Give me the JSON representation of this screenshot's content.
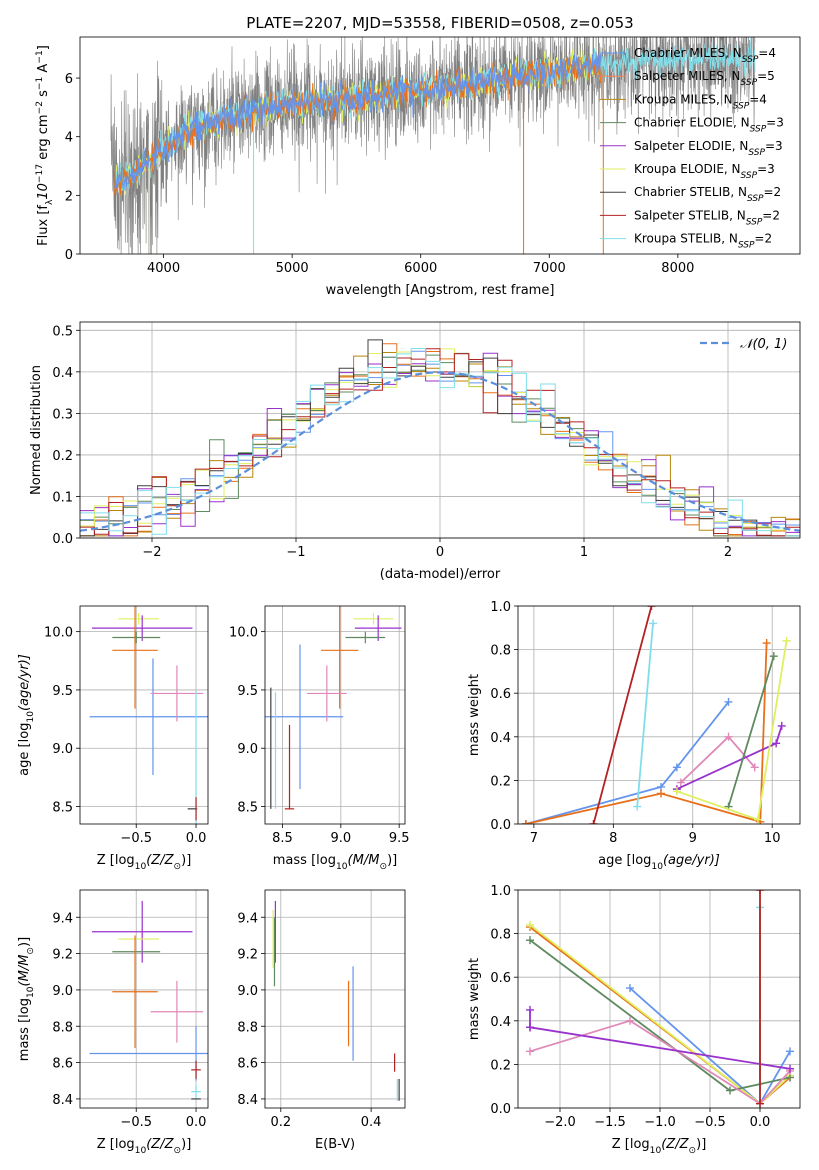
{
  "figure_title": "PLATE=2207, MJD=53558, FIBERID=0508, z=0.053",
  "colors": {
    "Chabrier MILES": "#6495ed",
    "Salpeter MILES": "#ff7f50",
    "Kroupa MILES": "#b8860b",
    "Chabrier ELODIE": "#5f8a5f",
    "Salpeter ELODIE": "#9932cc",
    "Kroupa ELODIE": "#dfef5f",
    "Chabrier STELIB": "#404040",
    "Salpeter STELIB": "#b22222",
    "Kroupa STELIB": "#80deea",
    "Pink": "#e088b8",
    "Orange": "#e8701a",
    "Gray": "#808080"
  },
  "chart_data": [
    {
      "id": "spectrum",
      "type": "line",
      "xlabel": "wavelength [Angstrom, rest frame]",
      "ylabel_parts": [
        "Flux [f",
        "λ",
        "10",
        "−17",
        " erg cm",
        "−2",
        " s",
        "−1",
        " A",
        "−1",
        "]"
      ],
      "xlim": [
        3350,
        8950
      ],
      "ylim": [
        0,
        7.4
      ],
      "xticks": [
        4000,
        5000,
        6000,
        7000,
        8000
      ],
      "yticks": [
        0,
        2,
        4,
        6
      ],
      "grid": false,
      "legend_placement": "top-right",
      "legend": [
        {
          "label": "Chabrier MILES, N",
          "sub": "SSP",
          "suffix": "=4",
          "color": "#6495ed"
        },
        {
          "label": "Salpeter MILES, N",
          "sub": "SSP",
          "suffix": "=5",
          "color": "#ff7f50"
        },
        {
          "label": "Kroupa MILES, N",
          "sub": "SSP",
          "suffix": "=4",
          "color": "#b8860b"
        },
        {
          "label": "Chabrier ELODIE, N",
          "sub": "SSP",
          "suffix": "=3",
          "color": "#5f8a5f"
        },
        {
          "label": "Salpeter ELODIE, N",
          "sub": "SSP",
          "suffix": "=3",
          "color": "#9932cc"
        },
        {
          "label": "Kroupa ELODIE, N",
          "sub": "SSP",
          "suffix": "=3",
          "color": "#dfef5f"
        },
        {
          "label": "Chabrier STELIB, N",
          "sub": "SSP",
          "suffix": "=2",
          "color": "#404040"
        },
        {
          "label": "Salpeter STELIB, N",
          "sub": "SSP",
          "suffix": "=2",
          "color": "#b22222"
        },
        {
          "label": "Kroupa STELIB, N",
          "sub": "SSP",
          "suffix": "=2",
          "color": "#80deea"
        }
      ],
      "continuum": {
        "x": [
          3600,
          3800,
          4000,
          4200,
          4500,
          4800,
          5000,
          5300,
          5600,
          5900,
          6200,
          6500,
          6800,
          7000,
          7200,
          7400,
          7600,
          7800,
          8000,
          8200,
          8400,
          8600
        ],
        "y": [
          2.3,
          2.8,
          3.6,
          4.2,
          4.6,
          4.9,
          5.1,
          5.2,
          5.35,
          5.55,
          5.65,
          5.85,
          6.1,
          6.2,
          6.3,
          6.4,
          6.5,
          6.55,
          6.6,
          6.65,
          6.65,
          6.6
        ]
      },
      "data_noise": 0.9,
      "model_noise": 0.25
    },
    {
      "id": "residuals",
      "type": "line",
      "xlabel": "(data-model)/error",
      "ylabel": "Normed distribution",
      "xlim": [
        -2.5,
        2.5
      ],
      "ylim": [
        0,
        0.52
      ],
      "xticks": [
        -2,
        -1,
        0,
        1,
        2
      ],
      "xticklabels": [
        "−2",
        "−1",
        "0",
        "1",
        "2"
      ],
      "yticks": [
        0.0,
        0.1,
        0.2,
        0.3,
        0.4,
        0.5
      ],
      "yticklabels": [
        "0.0",
        "0.1",
        "0.2",
        "0.3",
        "0.4",
        "0.5"
      ],
      "grid": true,
      "legend_placement": "top-right",
      "gaussian_label": "𝒩(0, 1)",
      "gaussian_color": "#5b8fdb",
      "bin_width": 0.1,
      "hist_noise": 0.03
    },
    {
      "id": "age-vs-Z",
      "type": "scatter",
      "xlabel_parts": [
        "Z [log",
        "10",
        "(Z/Z",
        "⊙",
        ")]"
      ],
      "ylabel_parts": [
        "age  [log",
        "10",
        "(age/yr)]"
      ],
      "xlim": [
        -0.97,
        0.1
      ],
      "ylim": [
        8.35,
        10.22
      ],
      "xticks": [
        -0.5,
        0.0
      ],
      "xticklabels": [
        "−0.5",
        "0.0"
      ],
      "yticks": [
        8.5,
        9.0,
        9.5,
        10.0
      ],
      "yticklabels": [
        "8.5",
        "9.0",
        "9.5",
        "10.0"
      ],
      "grid": true,
      "points": [
        {
          "x": -0.48,
          "y": 10.11,
          "xerr": 0.17,
          "yerr": 0.05,
          "color": "#dfef5f"
        },
        {
          "x": -0.45,
          "y": 10.03,
          "xerr": 0.42,
          "yerr": 0.11,
          "color": "#9932cc"
        },
        {
          "x": -0.5,
          "y": 9.95,
          "xerr": 0.2,
          "yerr": 0.05,
          "color": "#5f8a5f"
        },
        {
          "x": -0.51,
          "y": 9.84,
          "xerr": 0.19,
          "yerr": 0.5,
          "color": "#e8701a"
        },
        {
          "x": -0.36,
          "y": 9.27,
          "xerr": 0.53,
          "yerr": 0.5,
          "color": "#6495ed"
        },
        {
          "x": -0.16,
          "y": 9.47,
          "xerr": 0.22,
          "yerr": 0.24,
          "color": "#e088b8"
        },
        {
          "x": -0.03,
          "y": 8.48,
          "xerr": 0.04,
          "yerr": 0.0,
          "color": "#404040"
        },
        {
          "x": 0.0,
          "y": 8.48,
          "xerr": 0.0,
          "yerr": 1.01,
          "color": "#80deea"
        },
        {
          "x": 0.0,
          "y": 8.48,
          "xerr": 0.0,
          "yerr": 0.1,
          "color": "#b22222"
        }
      ]
    },
    {
      "id": "age-vs-mass",
      "type": "scatter",
      "xlabel_parts": [
        "mass [log",
        "10",
        "(M/M",
        "⊙",
        ")]"
      ],
      "xlim": [
        8.35,
        9.55
      ],
      "ylim": [
        8.35,
        10.22
      ],
      "xticks": [
        8.5,
        9.0,
        9.5
      ],
      "xticklabels": [
        "8.5",
        "9.0",
        "9.5"
      ],
      "yticks": [
        8.5,
        9.0,
        9.5,
        10.0
      ],
      "yticklabels": [
        "8.5",
        "9.0",
        "9.5",
        "10.0"
      ],
      "grid": true,
      "points": [
        {
          "x": 9.28,
          "y": 10.11,
          "xerr": 0.17,
          "yerr": 0.05,
          "color": "#dfef5f"
        },
        {
          "x": 9.32,
          "y": 10.03,
          "xerr": 0.2,
          "yerr": 0.11,
          "color": "#9932cc"
        },
        {
          "x": 9.21,
          "y": 9.95,
          "xerr": 0.17,
          "yerr": 0.05,
          "color": "#5f8a5f"
        },
        {
          "x": 8.99,
          "y": 9.84,
          "xerr": 0.16,
          "yerr": 0.5,
          "color": "#e8701a"
        },
        {
          "x": 8.65,
          "y": 9.27,
          "xerr": 0.0,
          "yerr": 0.62,
          "color": "#6495ed"
        },
        {
          "x": 8.65,
          "y": 9.27,
          "xerr": 0.37,
          "yerr": 0.0,
          "color": "#6495ed"
        },
        {
          "x": 8.88,
          "y": 9.47,
          "xerr": 0.17,
          "yerr": 0.24,
          "color": "#e088b8"
        },
        {
          "x": 8.4,
          "y": 9.0,
          "xerr": 0.0,
          "yerr": 0.52,
          "color": "#404040"
        },
        {
          "x": 8.44,
          "y": 8.98,
          "xerr": 0.0,
          "yerr": 0.5,
          "color": "#80deea"
        },
        {
          "x": 8.56,
          "y": 8.84,
          "xerr": 0.0,
          "yerr": 0.36,
          "color": "#b22222"
        },
        {
          "x": 8.56,
          "y": 8.48,
          "xerr": 0.04,
          "yerr": 0.0,
          "color": "#b22222"
        }
      ]
    },
    {
      "id": "weight-vs-age",
      "type": "line",
      "xlabel_parts": [
        "age  [log",
        "10",
        "(age/yr)]"
      ],
      "ylabel": "mass weight",
      "xlim": [
        6.8,
        10.35
      ],
      "ylim": [
        0,
        1.0
      ],
      "xticks": [
        7,
        8,
        9,
        10
      ],
      "xticklabels": [
        "7",
        "8",
        "9",
        "10"
      ],
      "yticks": [
        0.0,
        0.2,
        0.4,
        0.6,
        0.8,
        1.0
      ],
      "yticklabels": [
        "0.0",
        "0.2",
        "0.4",
        "0.6",
        "0.8",
        "1.0"
      ],
      "grid": true,
      "series": [
        {
          "color": "#6495ed",
          "x": [
            6.9,
            8.6,
            8.8,
            9.45
          ],
          "y": [
            0.0,
            0.17,
            0.26,
            0.56
          ]
        },
        {
          "color": "#e8701a",
          "x": [
            6.9,
            8.6,
            9.85,
            9.93
          ],
          "y": [
            0.0,
            0.14,
            0.01,
            0.83
          ]
        },
        {
          "color": "#e088b8",
          "x": [
            8.85,
            9.45,
            9.78
          ],
          "y": [
            0.19,
            0.4,
            0.26
          ]
        },
        {
          "color": "#9932cc",
          "x": [
            8.8,
            10.05,
            10.12
          ],
          "y": [
            0.16,
            0.37,
            0.45
          ]
        },
        {
          "color": "#5f8a5f",
          "x": [
            9.45,
            10.02
          ],
          "y": [
            0.08,
            0.77
          ]
        },
        {
          "color": "#dfef5f",
          "x": [
            8.8,
            9.82,
            10.18
          ],
          "y": [
            0.15,
            0.02,
            0.84
          ]
        },
        {
          "color": "#80deea",
          "x": [
            8.3,
            8.5
          ],
          "y": [
            0.08,
            0.92
          ]
        },
        {
          "color": "#b22222",
          "x": [
            7.75,
            8.48
          ],
          "y": [
            0.0,
            1.0
          ]
        }
      ]
    },
    {
      "id": "mass-vs-Z",
      "type": "scatter",
      "xlabel_parts": [
        "Z [log",
        "10",
        "(Z/Z",
        "⊙",
        ")]"
      ],
      "ylabel_parts": [
        "mass [log",
        "10",
        "(M/M",
        "⊙",
        ")]"
      ],
      "xlim": [
        -0.97,
        0.1
      ],
      "ylim": [
        8.35,
        9.55
      ],
      "xticks": [
        -0.5,
        0.0
      ],
      "xticklabels": [
        "−0.5",
        "0.0"
      ],
      "yticks": [
        8.4,
        8.6,
        8.8,
        9.0,
        9.2,
        9.4
      ],
      "yticklabels": [
        "8.4",
        "8.6",
        "8.8",
        "9.0",
        "9.2",
        "9.4"
      ],
      "grid": true,
      "points": [
        {
          "x": -0.45,
          "y": 9.32,
          "xerr": 0.42,
          "yerr": 0.17,
          "color": "#9932cc"
        },
        {
          "x": -0.48,
          "y": 9.28,
          "xerr": 0.17,
          "yerr": 0.0,
          "color": "#dfef5f"
        },
        {
          "x": -0.5,
          "y": 9.21,
          "xerr": 0.2,
          "yerr": 0.0,
          "color": "#5f8a5f"
        },
        {
          "x": -0.51,
          "y": 8.99,
          "xerr": 0.19,
          "yerr": 0.31,
          "color": "#e8701a"
        },
        {
          "x": -0.16,
          "y": 8.88,
          "xerr": 0.22,
          "yerr": 0.17,
          "color": "#e088b8"
        },
        {
          "x": -0.36,
          "y": 8.65,
          "xerr": 0.53,
          "yerr": 0.0,
          "color": "#6495ed"
        },
        {
          "x": 0.0,
          "y": 8.65,
          "xerr": 0.0,
          "yerr": 0.15,
          "color": "#6495ed"
        },
        {
          "x": 0.0,
          "y": 8.56,
          "xerr": 0.04,
          "yerr": 0.05,
          "color": "#b22222"
        },
        {
          "x": 0.0,
          "y": 8.44,
          "xerr": 0.04,
          "yerr": 0.04,
          "color": "#80deea"
        },
        {
          "x": 0.0,
          "y": 8.4,
          "xerr": 0.04,
          "yerr": 0.0,
          "color": "#404040"
        }
      ]
    },
    {
      "id": "mass-vs-ebv",
      "type": "scatter",
      "xlabel": "E(B-V)",
      "xlim": [
        0.165,
        0.475
      ],
      "ylim": [
        8.35,
        9.55
      ],
      "xticks": [
        0.2,
        0.4
      ],
      "xticklabels": [
        "0.2",
        "0.4"
      ],
      "yticks": [
        8.4,
        8.6,
        8.8,
        9.0,
        9.2,
        9.4
      ],
      "yticklabels": [
        "8.4",
        "8.6",
        "8.8",
        "9.0",
        "9.2",
        "9.4"
      ],
      "grid": true,
      "points": [
        {
          "x": 0.188,
          "y": 9.32,
          "xerr": 0.0,
          "yerr": 0.17,
          "color": "#9932cc"
        },
        {
          "x": 0.183,
          "y": 9.28,
          "xerr": 0.0,
          "yerr": 0.16,
          "color": "#dfef5f"
        },
        {
          "x": 0.186,
          "y": 9.21,
          "xerr": 0.0,
          "yerr": 0.19,
          "color": "#5f8a5f"
        },
        {
          "x": 0.36,
          "y": 8.87,
          "xerr": 0.0,
          "yerr": 0.26,
          "color": "#6495ed"
        },
        {
          "x": 0.35,
          "y": 8.87,
          "xerr": 0.0,
          "yerr": 0.18,
          "color": "#e8701a"
        },
        {
          "x": 0.452,
          "y": 8.6,
          "xerr": 0.0,
          "yerr": 0.05,
          "color": "#b22222"
        },
        {
          "x": 0.458,
          "y": 8.45,
          "xerr": 0.0,
          "yerr": 0.06,
          "color": "#80deea"
        },
        {
          "x": 0.462,
          "y": 8.45,
          "xerr": 0.0,
          "yerr": 0.06,
          "color": "#404040"
        }
      ]
    },
    {
      "id": "weight-vs-Z",
      "type": "line",
      "xlabel_parts": [
        "Z [log",
        "10",
        "(Z/Z",
        "⊙",
        ")]"
      ],
      "ylabel": "mass weight",
      "xlim": [
        -2.42,
        0.4
      ],
      "ylim": [
        0,
        1.0
      ],
      "xticks": [
        -2.0,
        -1.5,
        -1.0,
        -0.5,
        0.0
      ],
      "xticklabels": [
        "−2.0",
        "−1.5",
        "−1.0",
        "−0.5",
        "0.0"
      ],
      "yticks": [
        0.0,
        0.2,
        0.4,
        0.6,
        0.8,
        1.0
      ],
      "yticklabels": [
        "0.0",
        "0.2",
        "0.4",
        "0.6",
        "0.8",
        "1.0"
      ],
      "grid": true,
      "series": [
        {
          "color": "#6495ed",
          "x": [
            -1.3,
            0.0,
            0.3
          ],
          "y": [
            0.55,
            0.02,
            0.26
          ]
        },
        {
          "color": "#e8701a",
          "x": [
            -2.3,
            0.0,
            0.3
          ],
          "y": [
            0.83,
            0.02,
            0.14
          ]
        },
        {
          "color": "#dfef5f",
          "x": [
            -2.3,
            0.0,
            0.3
          ],
          "y": [
            0.84,
            0.02,
            0.15
          ]
        },
        {
          "color": "#5f8a5f",
          "x": [
            -2.3,
            -0.3,
            0.3
          ],
          "y": [
            0.77,
            0.08,
            0.14
          ]
        },
        {
          "color": "#e088b8",
          "x": [
            -2.3,
            -1.3,
            0.0,
            0.3
          ],
          "y": [
            0.26,
            0.4,
            0.02,
            0.17
          ]
        },
        {
          "color": "#9932cc",
          "x": [
            -2.3,
            0.3
          ],
          "y": [
            0.37,
            0.18
          ]
        },
        {
          "color": "#9932cc",
          "x": [
            -2.3,
            -2.3
          ],
          "y": [
            0.37,
            0.45
          ]
        },
        {
          "color": "#80deea",
          "x": [
            0.0,
            0.0
          ],
          "y": [
            0.02,
            0.92
          ]
        },
        {
          "color": "#b22222",
          "x": [
            0.0,
            0.0
          ],
          "y": [
            0.02,
            1.0
          ]
        }
      ]
    }
  ]
}
